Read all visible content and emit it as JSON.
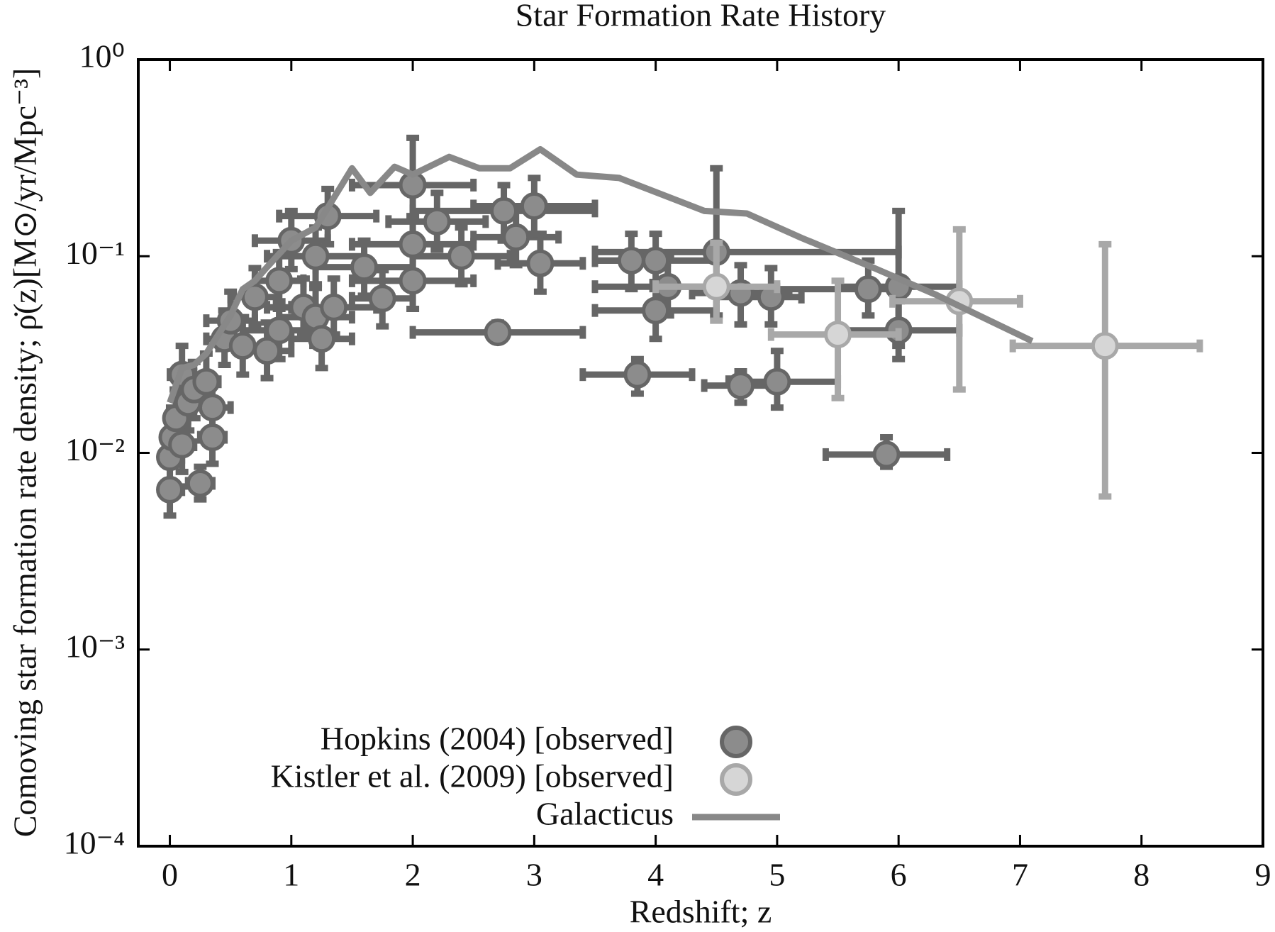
{
  "chart_data": {
    "type": "scatter",
    "title": "Star Formation Rate History",
    "x_label": "Redshift; z",
    "y_label": "Comoving star formation rate density; ρ̇(z)[M⊙/yr/Mpc⁻³]",
    "xlim": [
      -0.26,
      9
    ],
    "xticks": [
      0,
      1,
      2,
      3,
      4,
      5,
      6,
      7,
      8,
      9
    ],
    "ylim": [
      0.0001,
      1
    ],
    "ylog": true,
    "yticks": [
      {
        "value": 0.0001,
        "label": "10⁻⁴"
      },
      {
        "value": 0.001,
        "label": "10⁻³"
      },
      {
        "value": 0.01,
        "label": "10⁻²"
      },
      {
        "value": 0.1,
        "label": "10⁻¹"
      },
      {
        "value": 1,
        "label": "10⁰"
      }
    ],
    "legend": "lower center",
    "series": [
      {
        "name": "Hopkins (2004) [observed]",
        "kind": "points",
        "color": "#666666",
        "fill": "#8c8c8c",
        "x": [
          0,
          0,
          0.02,
          0.05,
          0.1,
          0.1,
          0.15,
          0.2,
          0.25,
          0.3,
          0.35,
          0.35,
          0.45,
          0.5,
          0.6,
          0.7,
          0.8,
          0.9,
          0.9,
          1.0,
          1.1,
          1.2,
          1.2,
          1.25,
          1.3,
          1.35,
          1.6,
          1.75,
          2.0,
          2.0,
          2.0,
          2.2,
          2.4,
          2.7,
          2.75,
          2.85,
          3.0,
          3.05,
          3.8,
          4.0,
          4.0,
          4.1,
          3.85,
          4.5,
          4.7,
          4.7,
          4.95,
          5.0,
          5.75,
          5.9,
          6.0,
          6.0
        ],
        "values": [
          0.0065,
          0.0095,
          0.012,
          0.015,
          0.011,
          0.025,
          0.018,
          0.021,
          0.007,
          0.023,
          0.012,
          0.017,
          0.038,
          0.047,
          0.035,
          0.062,
          0.033,
          0.075,
          0.042,
          0.12,
          0.055,
          0.1,
          0.049,
          0.038,
          0.16,
          0.055,
          0.088,
          0.061,
          0.23,
          0.115,
          0.075,
          0.15,
          0.1,
          0.041,
          0.17,
          0.125,
          0.18,
          0.092,
          0.095,
          0.095,
          0.053,
          0.07,
          0.025,
          0.105,
          0.065,
          0.022,
          0.062,
          0.023,
          0.068,
          0.0098,
          0.07,
          0.042
        ],
        "xlow": [
          0,
          0,
          0,
          0,
          0,
          0,
          0.05,
          0.1,
          0.15,
          0.2,
          0.25,
          0.2,
          0.3,
          0.3,
          0.4,
          0.5,
          0.6,
          0.7,
          0.6,
          0.7,
          0.8,
          0.8,
          0.9,
          1.0,
          0.9,
          1.0,
          1.2,
          1.5,
          1.5,
          1.5,
          1.5,
          1.8,
          2.0,
          2.0,
          2.0,
          2.5,
          2.5,
          2.7,
          3.5,
          3.5,
          3.5,
          3.5,
          3.4,
          3.5,
          4.3,
          4.4,
          4.5,
          4.6,
          5.0,
          5.4,
          5.5,
          5.5
        ],
        "xhigh": [
          0.1,
          0.1,
          0.1,
          0.15,
          0.2,
          0.2,
          0.25,
          0.3,
          0.35,
          0.4,
          0.45,
          0.5,
          0.6,
          0.7,
          0.8,
          0.9,
          1.0,
          1.1,
          1.2,
          1.3,
          1.4,
          1.6,
          1.5,
          1.5,
          1.7,
          1.7,
          2.0,
          2.0,
          2.5,
          2.5,
          2.5,
          2.6,
          2.8,
          3.4,
          3.5,
          3.2,
          3.5,
          3.4,
          4.1,
          4.5,
          4.5,
          4.7,
          4.3,
          6.0,
          5.1,
          5.0,
          5.2,
          5.5,
          6.0,
          6.4,
          6.5,
          6.5
        ],
        "ylow": [
          0.0048,
          0.0068,
          0.0086,
          0.011,
          0.008,
          0.018,
          0.013,
          0.015,
          0.0058,
          0.017,
          0.0088,
          0.012,
          0.028,
          0.034,
          0.025,
          0.045,
          0.024,
          0.054,
          0.03,
          0.086,
          0.04,
          0.072,
          0.035,
          0.027,
          0.115,
          0.04,
          0.063,
          0.044,
          0.12,
          0.083,
          0.054,
          0.108,
          0.072,
          0.037,
          0.12,
          0.09,
          0.13,
          0.066,
          0.068,
          0.068,
          0.038,
          0.05,
          0.02,
          0.05,
          0.045,
          0.018,
          0.045,
          0.017,
          0.05,
          0.0085,
          0.035,
          0.03
        ],
        "yhigh": [
          0.0085,
          0.013,
          0.017,
          0.021,
          0.015,
          0.035,
          0.025,
          0.029,
          0.0085,
          0.032,
          0.017,
          0.024,
          0.053,
          0.066,
          0.049,
          0.087,
          0.046,
          0.105,
          0.059,
          0.17,
          0.077,
          0.14,
          0.069,
          0.053,
          0.22,
          0.077,
          0.12,
          0.085,
          0.4,
          0.16,
          0.105,
          0.21,
          0.14,
          0.046,
          0.23,
          0.175,
          0.25,
          0.13,
          0.13,
          0.13,
          0.074,
          0.098,
          0.03,
          0.28,
          0.09,
          0.026,
          0.087,
          0.033,
          0.095,
          0.012,
          0.17,
          0.059
        ]
      },
      {
        "name": "Kistler et al. (2009) [observed]",
        "kind": "points",
        "color": "#a8a8a8",
        "fill": "#d6d6d6",
        "x": [
          4.5,
          5.5,
          6.5,
          7.7
        ],
        "values": [
          0.07,
          0.04,
          0.059,
          0.035
        ],
        "xlow": [
          4.0,
          4.95,
          5.95,
          6.94
        ],
        "xhigh": [
          5.0,
          6.0,
          7.0,
          8.48
        ],
        "ylow": [
          0.047,
          0.019,
          0.021,
          0.006
        ],
        "yhigh": [
          0.117,
          0.075,
          0.137,
          0.115
        ]
      },
      {
        "name": "Galacticus",
        "kind": "line",
        "color": "#888888",
        "x": [
          0.0,
          0.1,
          0.2,
          0.3,
          0.4,
          0.5,
          0.6,
          0.7,
          0.8,
          1.0,
          1.2,
          1.5,
          1.65,
          1.85,
          2.0,
          2.3,
          2.55,
          2.8,
          3.05,
          3.35,
          3.7,
          4.4,
          4.75,
          5.2,
          5.8,
          6.3,
          7.1
        ],
        "values": [
          0.018,
          0.027,
          0.028,
          0.032,
          0.04,
          0.05,
          0.068,
          0.075,
          0.088,
          0.12,
          0.14,
          0.28,
          0.21,
          0.285,
          0.26,
          0.32,
          0.28,
          0.28,
          0.35,
          0.26,
          0.25,
          0.17,
          0.165,
          0.124,
          0.087,
          0.064,
          0.037
        ]
      }
    ]
  }
}
